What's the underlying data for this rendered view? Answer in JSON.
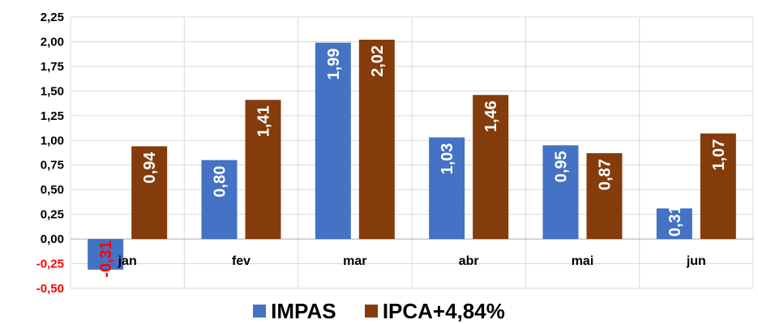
{
  "chart_data": {
    "type": "bar",
    "categories": [
      "jan",
      "fev",
      "mar",
      "abr",
      "mai",
      "jun"
    ],
    "series": [
      {
        "name": "IMPAS",
        "values": [
          -0.31,
          0.8,
          1.99,
          1.03,
          0.95,
          0.31
        ],
        "labels": [
          "-0,31",
          "0,80",
          "1,99",
          "1,03",
          "0,95",
          "0,31"
        ]
      },
      {
        "name": "IPCA+4,84%",
        "values": [
          0.94,
          1.41,
          2.02,
          1.46,
          0.87,
          1.07
        ],
        "labels": [
          "0,94",
          "1,41",
          "2,02",
          "1,46",
          "0,87",
          "1,07"
        ]
      }
    ],
    "yticks": [
      -0.5,
      -0.25,
      0,
      0.25,
      0.5,
      0.75,
      1.0,
      1.25,
      1.5,
      1.75,
      2.0,
      2.25
    ],
    "ytick_labels": [
      "-0,50",
      "-0,25",
      "0,00",
      "0,25",
      "0,50",
      "0,75",
      "1,00",
      "1,25",
      "1,50",
      "1,75",
      "2,00",
      "2,25"
    ],
    "ylim": [
      -0.5,
      2.25
    ],
    "grid": true,
    "legend_position": "bottom",
    "colors": {
      "IMPAS": "#4472C4",
      "IPCA+4,84%": "#843C0C",
      "negative_tick": "#FF0000",
      "negative_label": "#FF0000",
      "positive_label": "#FFFFFF",
      "grid": "#D9D9D9"
    }
  }
}
